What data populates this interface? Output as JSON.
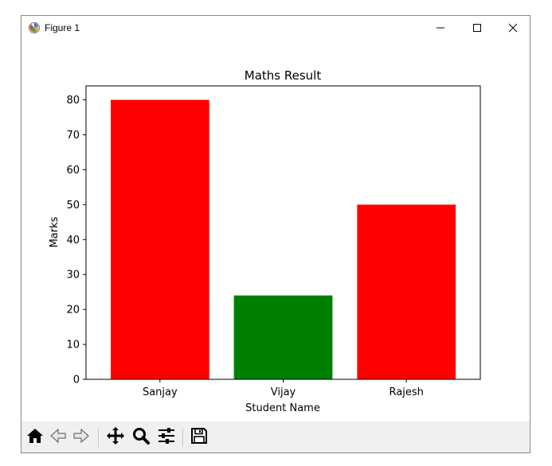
{
  "window": {
    "title": "Figure 1",
    "icons": {
      "app": "matplotlib-icon",
      "minimize": "minimize-icon",
      "maximize": "maximize-icon",
      "close": "close-icon"
    }
  },
  "toolbar": {
    "buttons": [
      {
        "name": "home",
        "icon": "home-icon"
      },
      {
        "name": "back",
        "icon": "back-arrow-icon"
      },
      {
        "name": "forward",
        "icon": "forward-arrow-icon"
      },
      {
        "name": "pan",
        "icon": "move-icon"
      },
      {
        "name": "zoom",
        "icon": "zoom-icon"
      },
      {
        "name": "configure-subplots",
        "icon": "sliders-icon"
      },
      {
        "name": "save",
        "icon": "save-icon"
      }
    ]
  },
  "chart_data": {
    "type": "bar",
    "title": "Maths Result",
    "xlabel": "Student Name",
    "ylabel": "Marks",
    "categories": [
      "Sanjay",
      "Vijay",
      "Rajesh"
    ],
    "values": [
      80,
      24,
      50
    ],
    "bar_colors": [
      "#ff0000",
      "#008000",
      "#ff0000"
    ],
    "ylim": [
      0,
      84
    ],
    "yticks": [
      0,
      10,
      20,
      30,
      40,
      50,
      60,
      70,
      80
    ],
    "grid": false
  }
}
